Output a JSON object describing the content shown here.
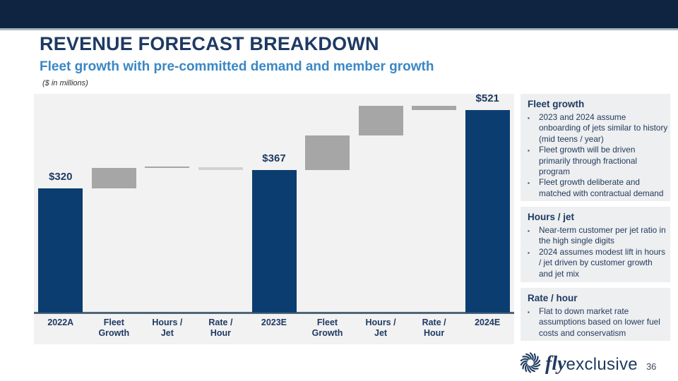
{
  "slide": {
    "title": "REVENUE FORECAST BREAKDOWN",
    "subtitle": "Fleet growth with pre-committed demand and member growth",
    "units_note": "($ in millions)",
    "page_number": "36",
    "logo": {
      "icon": "pinwheel-swirl-icon",
      "brand_italic": "fly",
      "brand_regular": "exclusive"
    }
  },
  "colors": {
    "topbar": "#0e2440",
    "topbar_underline": "#a9b6c2",
    "title": "#1e3a63",
    "subtitle": "#3a87c4",
    "plot_bg": "#f2f2f2",
    "axis_line": "#4d6579",
    "bar_total": "#0b3d70",
    "bar_delta": "#a6a6a6",
    "bar_delta_light": "#d2d2d2",
    "panel_bg": "#edeff0",
    "panel_text": "#243b5e"
  },
  "chart_data": {
    "type": "bar",
    "subtype": "waterfall",
    "title": "",
    "units": "$ in millions",
    "ylim": [
      0,
      563
    ],
    "grid": false,
    "legend": "none",
    "categories": [
      "2022A",
      "Fleet Growth",
      "Hours / Jet",
      "Rate / Hour",
      "2023E",
      "Fleet Growth",
      "Hours / Jet",
      "Rate / Hour",
      "2024E"
    ],
    "steps": [
      {
        "label_lines": [
          "2022A"
        ],
        "kind": "total",
        "value": 320,
        "value_label": "$320"
      },
      {
        "label_lines": [
          "Fleet",
          "Growth"
        ],
        "kind": "delta",
        "start": 320,
        "end": 372
      },
      {
        "label_lines": [
          "Hours /",
          "Jet"
        ],
        "kind": "delta",
        "start": 372,
        "end": 374
      },
      {
        "label_lines": [
          "Rate /",
          "Hour"
        ],
        "kind": "delta",
        "start": 374,
        "end": 367,
        "light": true
      },
      {
        "label_lines": [
          "2023E"
        ],
        "kind": "total",
        "value": 367,
        "value_label": "$367"
      },
      {
        "label_lines": [
          "Fleet",
          "Growth"
        ],
        "kind": "delta",
        "start": 367,
        "end": 456
      },
      {
        "label_lines": [
          "Hours /",
          "Jet"
        ],
        "kind": "delta",
        "start": 456,
        "end": 532
      },
      {
        "label_lines": [
          "Rate /",
          "Hour"
        ],
        "kind": "delta",
        "start": 532,
        "end": 521
      },
      {
        "label_lines": [
          "2024E"
        ],
        "kind": "total",
        "value": 521,
        "value_label": "$521"
      }
    ]
  },
  "sidebar": {
    "panels": [
      {
        "header": "Fleet growth",
        "bullets": [
          "2023 and 2024 assume onboarding of jets similar to history (mid teens / year)",
          "Fleet growth will be driven primarily through fractional program",
          "Fleet growth deliberate and matched with contractual demand"
        ]
      },
      {
        "header": "Hours / jet",
        "bullets": [
          "Near-term customer per jet ratio in the high single digits",
          "2024 assumes modest lift in hours / jet driven by customer growth and jet mix"
        ]
      },
      {
        "header": "Rate / hour",
        "bullets": [
          "Flat to down market rate assumptions based on lower fuel costs and conservatism"
        ]
      }
    ]
  }
}
